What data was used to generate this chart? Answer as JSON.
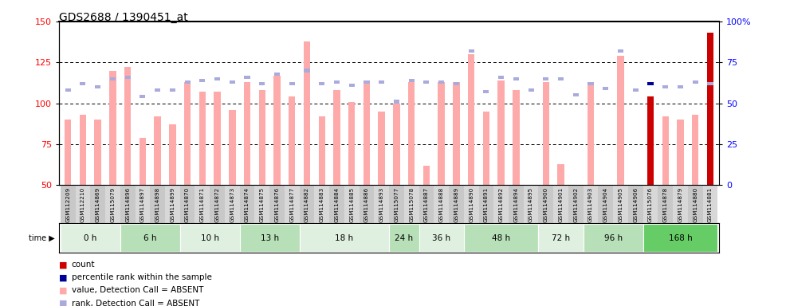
{
  "title": "GDS2688 / 1390451_at",
  "ylim": [
    50,
    150
  ],
  "yticks": [
    50,
    75,
    100,
    125,
    150
  ],
  "hlines": [
    75,
    100,
    125
  ],
  "right_yticks": [
    0,
    25,
    50,
    75,
    100
  ],
  "right_yticklabels": [
    "0",
    "25",
    "50",
    "75",
    "100%"
  ],
  "samples": [
    "GSM112209",
    "GSM112210",
    "GSM114869",
    "GSM115079",
    "GSM114896",
    "GSM114897",
    "GSM114898",
    "GSM114899",
    "GSM114870",
    "GSM114871",
    "GSM114872",
    "GSM114873",
    "GSM114874",
    "GSM114875",
    "GSM114876",
    "GSM114877",
    "GSM114882",
    "GSM114883",
    "GSM114884",
    "GSM114885",
    "GSM114886",
    "GSM114893",
    "GSM115077",
    "GSM115078",
    "GSM114887",
    "GSM114888",
    "GSM114889",
    "GSM114890",
    "GSM114891",
    "GSM114892",
    "GSM114894",
    "GSM114895",
    "GSM114900",
    "GSM114901",
    "GSM114902",
    "GSM114903",
    "GSM114904",
    "GSM114905",
    "GSM114906",
    "GSM115076",
    "GSM114878",
    "GSM114879",
    "GSM114880",
    "GSM114881"
  ],
  "bar_values": [
    90,
    93,
    90,
    120,
    122,
    79,
    92,
    87,
    113,
    107,
    107,
    96,
    113,
    108,
    117,
    104,
    138,
    92,
    108,
    101,
    112,
    95,
    100,
    113,
    62,
    113,
    113,
    130,
    95,
    114,
    108,
    47,
    113,
    63,
    47,
    113,
    48,
    129,
    48,
    104,
    92,
    90,
    93,
    143
  ],
  "rank_values": [
    108,
    112,
    110,
    115,
    116,
    104,
    108,
    108,
    113,
    114,
    115,
    113,
    116,
    112,
    118,
    112,
    120,
    112,
    113,
    111,
    113,
    113,
    101,
    114,
    113,
    113,
    112,
    132,
    107,
    116,
    115,
    108,
    115,
    115,
    105,
    112,
    109,
    132,
    108,
    112,
    110,
    110,
    113,
    112
  ],
  "special_bar_indices": [
    39,
    43
  ],
  "special_rank_indices": [
    39
  ],
  "salmon_color": "#ffaaaa",
  "rank_sq_color": "#aaaadd",
  "special_bar_color": "#cc0000",
  "special_rank_color": "#000099",
  "time_groups": [
    {
      "label": "0 h",
      "start": 0,
      "end": 4,
      "bg": "#e0f0e0"
    },
    {
      "label": "6 h",
      "start": 4,
      "end": 8,
      "bg": "#b8e0b8"
    },
    {
      "label": "10 h",
      "start": 8,
      "end": 12,
      "bg": "#e0f0e0"
    },
    {
      "label": "13 h",
      "start": 12,
      "end": 16,
      "bg": "#b8e0b8"
    },
    {
      "label": "18 h",
      "start": 16,
      "end": 22,
      "bg": "#e0f0e0"
    },
    {
      "label": "24 h",
      "start": 22,
      "end": 24,
      "bg": "#b8e0b8"
    },
    {
      "label": "36 h",
      "start": 24,
      "end": 27,
      "bg": "#e0f0e0"
    },
    {
      "label": "48 h",
      "start": 27,
      "end": 32,
      "bg": "#b8e0b8"
    },
    {
      "label": "72 h",
      "start": 32,
      "end": 35,
      "bg": "#e0f0e0"
    },
    {
      "label": "96 h",
      "start": 35,
      "end": 39,
      "bg": "#b8e0b8"
    },
    {
      "label": "168 h",
      "start": 39,
      "end": 44,
      "bg": "#66cc66"
    }
  ],
  "tick_bg_even": "#c8c8c8",
  "tick_bg_odd": "#d8d8d8"
}
